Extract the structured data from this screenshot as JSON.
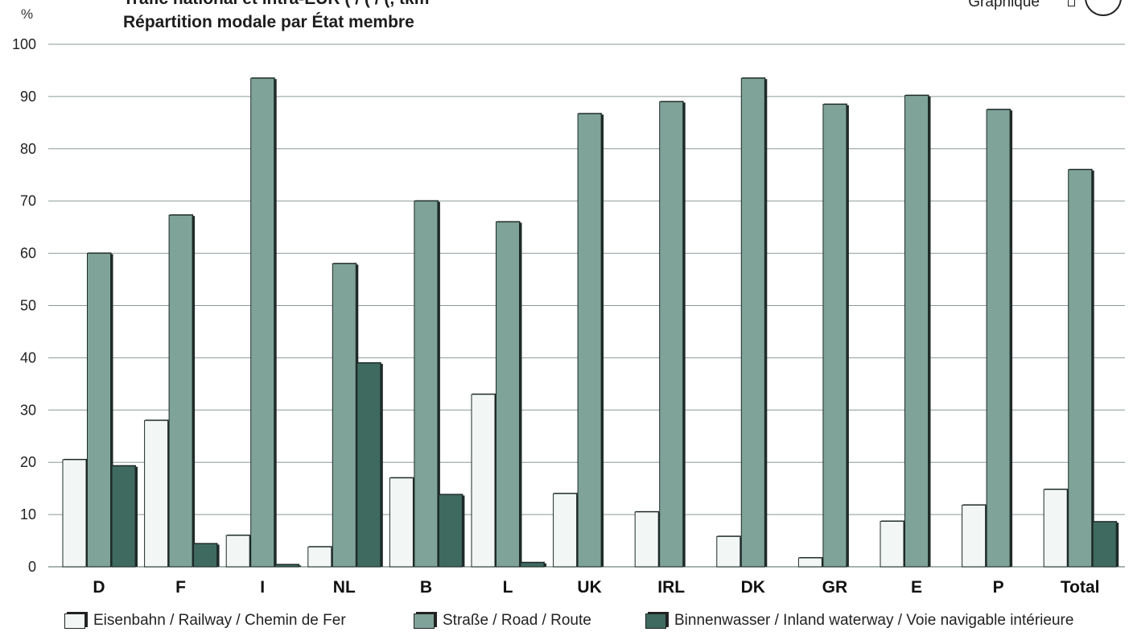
{
  "header": {
    "title_line1": "Trafic national et intra-EUR ( / ( / (, tkm",
    "title_line2": "Répartition modale par État membre",
    "tag": "Graphique",
    "unit": "%"
  },
  "colors": {
    "railway": "#f2f7f5",
    "road": "#7fa398",
    "waterway": "#3f6a60",
    "edge": "#1e2b28",
    "grid": "#8a9a96"
  },
  "chart_data": {
    "type": "bar",
    "categories": [
      "D",
      "F",
      "I",
      "NL",
      "B",
      "L",
      "UK",
      "IRL",
      "DK",
      "GR",
      "E",
      "P",
      "Total"
    ],
    "series": [
      {
        "name": "Eisenbahn / Railway / Chemin de Fer",
        "values": [
          20.5,
          28,
          6,
          3.8,
          17,
          33,
          14,
          10.5,
          5.8,
          1.7,
          8.7,
          11.8,
          14.8
        ]
      },
      {
        "name": "Straße / Road / Route",
        "values": [
          60,
          67.3,
          93.5,
          58,
          70,
          66,
          86.7,
          89,
          93.5,
          88.5,
          90.2,
          87.5,
          76
        ]
      },
      {
        "name": "Binnenwasser / Inland waterway / Voie navigable intérieure",
        "values": [
          19.3,
          4.4,
          0.4,
          39,
          13.8,
          0.8,
          0,
          0,
          0,
          0,
          0,
          0,
          8.6
        ]
      }
    ],
    "ylim": [
      0,
      100
    ],
    "yticks": [
      0,
      10,
      20,
      30,
      40,
      50,
      60,
      70,
      80,
      90,
      100
    ],
    "grid": true,
    "legend_position": "bottom"
  },
  "legend": {
    "railway": "Eisenbahn / Railway / Chemin de Fer",
    "road": "Straße / Road / Route",
    "waterway": "Binnenwasser / Inland waterway / Voie navigable intérieure"
  }
}
